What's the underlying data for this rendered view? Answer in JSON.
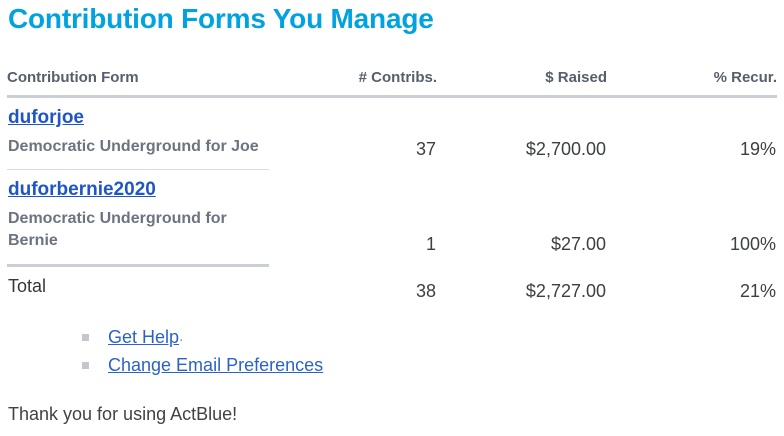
{
  "page": {
    "title": "Contribution Forms You Manage",
    "thanks": "Thank you for using ActBlue!"
  },
  "table": {
    "columns": [
      "Contribution Form",
      "# Contribs.",
      "$ Raised",
      "% Recur."
    ],
    "rows": [
      {
        "slug": "duforjoe",
        "name": "Democratic Underground for Joe",
        "contribs": "37",
        "raised": "$2,700.00",
        "recur": "19%"
      },
      {
        "slug": "duforbernie2020",
        "name": "Democratic Underground for Bernie",
        "contribs": "1",
        "raised": "$27.00",
        "recur": "100%"
      }
    ],
    "total": {
      "label": "Total",
      "contribs": "38",
      "raised": "$2,727.00",
      "recur": "21%"
    }
  },
  "footer_links": [
    {
      "label": "Get Help",
      "suffix": "."
    },
    {
      "label": "Change Email Preferences",
      "suffix": ""
    }
  ],
  "colors": {
    "title": "#00a3e0",
    "form_link": "#1f56c4",
    "footer_link": "#2a62c9",
    "header_text": "#565f6c",
    "subtitle_text": "#6b7480",
    "body_text": "#3c4043",
    "border_thick": "#c9ced7",
    "border_thin": "#d9dbe0"
  }
}
